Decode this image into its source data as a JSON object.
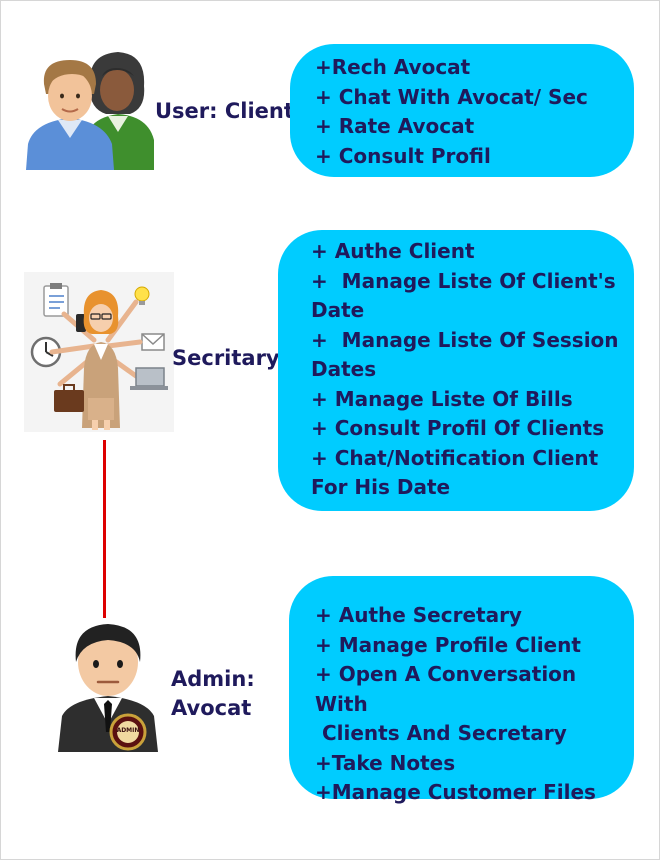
{
  "roles": [
    {
      "id": "client",
      "label": "User: Client",
      "icon": "users-icon",
      "actions": [
        "+Rech Avocat",
        "+ Chat With Avocat/ Sec",
        "+ Rate Avocat",
        "+ Consult Profil"
      ]
    },
    {
      "id": "secretary",
      "label": "Secritary",
      "icon": "multitasking-secretary-icon",
      "actions": [
        "+ Authe Client",
        "+  Manage Liste Of Client's",
        "Date",
        "+  Manage Liste Of Session",
        "Dates",
        "+ Manage Liste Of Bills",
        "+ Consult Profil Of Clients",
        "+ Chat/Notification Client",
        "For His Date"
      ]
    },
    {
      "id": "admin",
      "label_line1": "Admin:",
      "label_line2": "Avocat",
      "icon": "admin-businessman-icon",
      "badge_text": "ADMIN",
      "actions": [
        "+ Authe Secretary",
        "+ Manage Profile Client",
        "+ Open A Conversation With",
        " Clients And Secretary",
        "+Take Notes",
        "+Manage Customer Files"
      ]
    }
  ],
  "colors": {
    "bubble": "#00ccff",
    "text": "#1f1a5c",
    "connector": "#dd0000"
  }
}
